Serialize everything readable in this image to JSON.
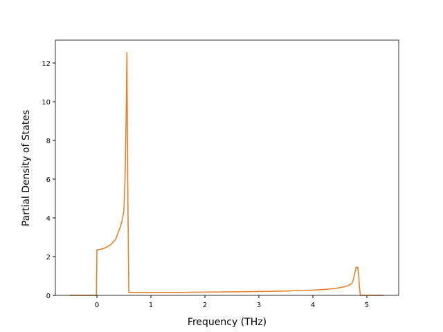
{
  "chart_data": {
    "type": "line",
    "xlabel": "Frequency (THz)",
    "ylabel": "Partial Density of States",
    "x": [
      -0.5,
      -0.01,
      0.0,
      0.05,
      0.1,
      0.15,
      0.2,
      0.25,
      0.3,
      0.35,
      0.4,
      0.43,
      0.47,
      0.5,
      0.52,
      0.54,
      0.555,
      0.57,
      0.59,
      1.0,
      1.5,
      2.0,
      2.5,
      3.0,
      3.5,
      3.7,
      4.0,
      4.2,
      4.4,
      4.5,
      4.6,
      4.65,
      4.72,
      4.75,
      4.78,
      4.8,
      4.83,
      4.85,
      4.86,
      4.88,
      5.31
    ],
    "series": [
      {
        "color": "#e8822a",
        "values": [
          0,
          0,
          2.35,
          2.37,
          2.4,
          2.45,
          2.52,
          2.6,
          2.75,
          2.9,
          3.3,
          3.5,
          3.9,
          4.4,
          6.0,
          9.0,
          12.55,
          6.0,
          0.15,
          0.15,
          0.15,
          0.17,
          0.18,
          0.2,
          0.22,
          0.25,
          0.27,
          0.3,
          0.35,
          0.4,
          0.45,
          0.5,
          0.6,
          0.8,
          1.2,
          1.45,
          1.45,
          1.0,
          0.5,
          0,
          0
        ]
      }
    ],
    "xlim": [
      -0.77,
      5.59
    ],
    "ylim": [
      0,
      13.18
    ],
    "xticks": [
      0,
      1,
      2,
      3,
      4,
      5
    ],
    "yticks": [
      0,
      2,
      4,
      6,
      8,
      10,
      12
    ]
  }
}
